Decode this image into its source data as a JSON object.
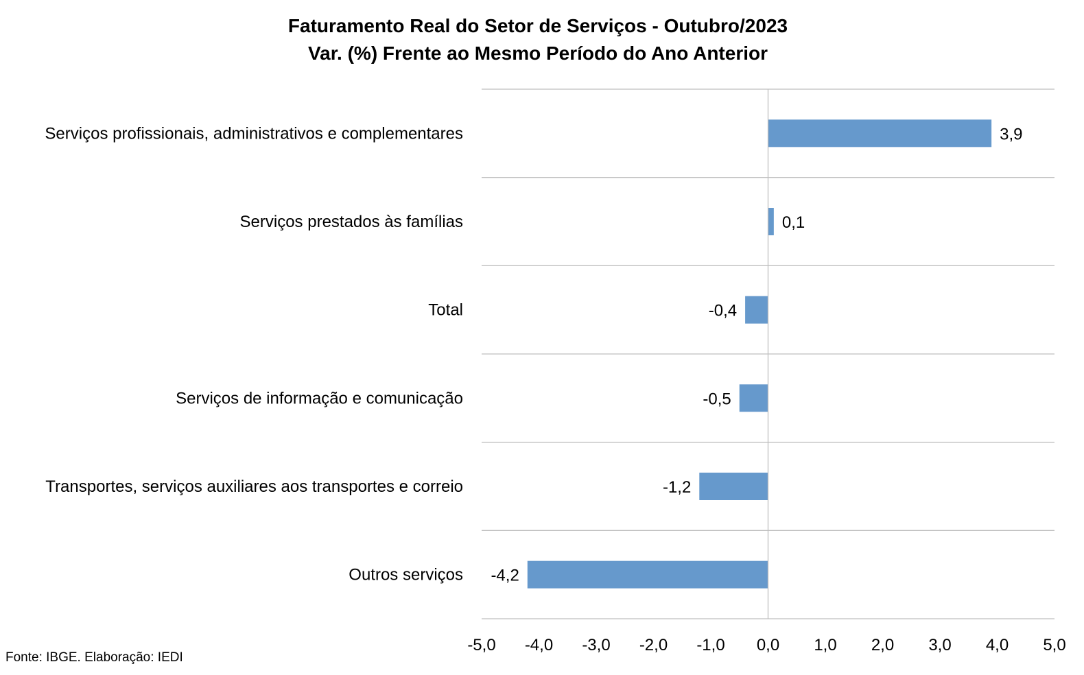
{
  "chart_data": {
    "type": "bar",
    "orientation": "horizontal",
    "title": "Faturamento Real do Setor de Serviços - Outubro/2023",
    "subtitle": "Var. (%) Frente ao Mesmo Período do Ano Anterior",
    "categories": [
      "Serviços profissionais, administrativos e complementares",
      "Serviços prestados às famílias",
      "Total",
      "Serviços de informação e comunicação",
      "Transportes, serviços auxiliares aos transportes e correio",
      "Outros serviços"
    ],
    "values": [
      3.9,
      0.1,
      -0.4,
      -0.5,
      -1.2,
      -4.2
    ],
    "value_labels": [
      "3,9",
      "0,1",
      "-0,4",
      "-0,5",
      "-1,2",
      "-4,2"
    ],
    "xlim": [
      -5,
      5
    ],
    "xticks": [
      -5,
      -4,
      -3,
      -2,
      -1,
      0,
      1,
      2,
      3,
      4,
      5
    ],
    "xtick_labels": [
      "-5,0",
      "-4,0",
      "-3,0",
      "-2,0",
      "-1,0",
      "0,0",
      "1,0",
      "2,0",
      "3,0",
      "4,0",
      "5,0"
    ],
    "grid": "horizontal separators between categories",
    "legend": "none",
    "bar_color": "#6699CC",
    "grid_color": "#BFBFBF"
  },
  "source_note": "Fonte: IBGE. Elaboração: IEDI"
}
